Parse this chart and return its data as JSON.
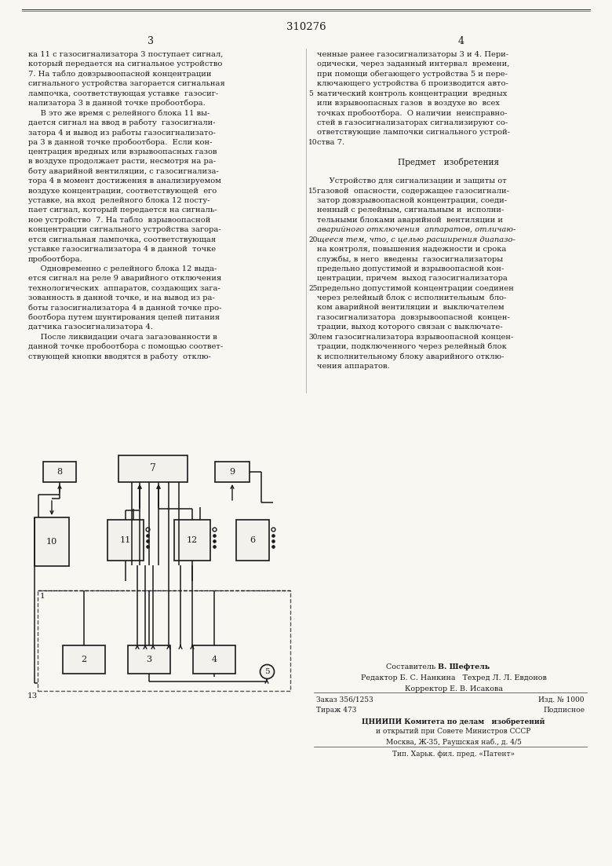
{
  "bg": "#f8f7f2",
  "fg": "#1a1a1a",
  "page_num": "310276",
  "col3": "3",
  "col4": "4",
  "body_fs": 7.1,
  "left_col": [
    "ка 11 с газосигнализатора 3 поступает сигнал,",
    "который передается на сигнальное устройство",
    "7. На табло довзрывоопасной концентрации",
    "сигнального устройства загорается сигнальная",
    "лампочка, соответствующая уставке  газосиг-",
    "нализатора 3 в данной точке пробоотбора.",
    "     В это же время с релейного блока 11 вы-",
    "дается сигнал на ввод в работу  газосигнали-",
    "затора 4 и вывод из работы газосигнализато-",
    "ра 3 в данной точке пробоотбора.  Если кон-",
    "центрация вредных или взрывоопасных газов",
    "в воздухе продолжает расти, несмотря на ра-",
    "боту аварийной вентиляции, с газосигнализа-",
    "тора 4 в момент достижения в анализируемом",
    "воздухе концентрации, соответствующей  его",
    "уставке, на вход  релейного блока 12 посту-",
    "пает сигнал, который передается на сигналь-",
    "ное устройство  7. На табло  взрывоопасной",
    "концентрации сигнального устройства загора-",
    "ется сигнальная лампочка, соответствующая",
    "уставке газосигнализатора 4 в данной  точке",
    "пробоотбора.",
    "     Одновременно с релейного блока 12 выда-",
    "ется сигнал на реле 9 аварийного отключения",
    "технологических  аппаратов, создающих зага-",
    "зованность в данной точке, и на вывод из ра-",
    "боты газосигнализатора 4 в данной точке про-",
    "боотбора путем шунтирования цепей питания",
    "датчика газосигнализатора 4.",
    "     После ликвидации очага загазованности в",
    "данной точке пробоотбора с помощью соответ-",
    "ствующей кнопки вводятся в работу  отклю-"
  ],
  "right_col": [
    "ченные ранее газосигнализаторы 3 и 4. Пери-",
    "одически, через заданный интервал  времени,",
    "при помощи обегающего устройства 5 и пере-",
    "ключающего устройства 6 производится авто-",
    "матический контроль концентрации  вредных",
    "или взрывоопасных газов  в воздухе во  всех",
    "точках пробоотбора.  О наличии  неисправно-",
    "стей в газосигнализаторах сигнализируют со-",
    "ответствующие лампочки сигнального устрой-",
    "ства 7.",
    "",
    "Предмет   изобретения",
    "",
    "     Устройство для сигнализации и защиты от",
    "газовой  опасности, содержащее газосигнали-",
    "затор довзрывоопасной концентрации, соеди-",
    "ненный с релейным, сигнальным и  исполни-",
    "тельными блоками аварийной  вентиляции и",
    "аварийного отключения  аппаратов, отличаю-",
    "щееся тем, что, с целью расширения диапазо-",
    "на контроля, повышения надежности и срока",
    "службы, в него  введены  газосигнализаторы",
    "предельно допустимой и взрывоопасной кон-",
    "центрации, причем  выход газосигнализатора",
    "предельно допустимой концентрации соединен",
    "через релейный блок с исполнительным  бло-",
    "ком аварийной вентиляции и  выключателем",
    "газосигнализатора  довзрывоопасной  концен-",
    "трации, выход которого связан с выключате-",
    "лем газосигнализатора взрывоопасной концен-",
    "трации, подключенного через релейный блок",
    "к исполнительному блоку аварийного отклю-",
    "чения аппаратов."
  ],
  "italic_lines": [
    18,
    19
  ],
  "predmet_line": 11,
  "line_nums": {
    "4": 5,
    "9": 10,
    "14": 15,
    "19": 20,
    "24": 25,
    "29": 30
  },
  "footer": {
    "composer": "Составитель В. Шефтель",
    "editor_line": "Редактор Б. С. Нанкина   Техред Л. Л. Евдонов",
    "corrector": "Корректор Е. В. Исакова",
    "order": "Заказ 356/1253",
    "edition": "Изд. № 1000",
    "tirazh": "Тираж 473",
    "podpisnoe": "Подписное",
    "org1": "ЦНИИПИ Комитета по делам   изобретений",
    "org2": "и открытий при Совете Министров СССР",
    "org3": "Москва, Ж-35, Раушская наб., д. 4/5",
    "print_house": "Тип. Харьк. фил. пред. «Патент»"
  }
}
